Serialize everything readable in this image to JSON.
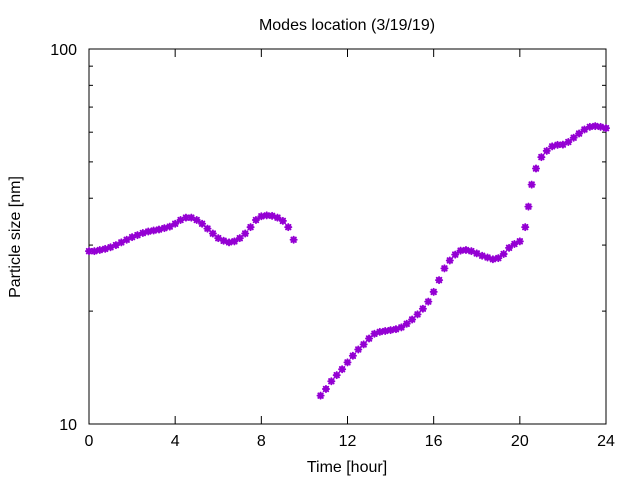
{
  "chart_data": {
    "type": "scatter",
    "title": "Modes location (3/19/19)",
    "xlabel": "Time [hour]",
    "ylabel": "Particle size [nm]",
    "xlim": [
      0,
      24
    ],
    "ylim": [
      10,
      100
    ],
    "yscale": "log",
    "grid": false,
    "legend": "none",
    "xticks": [
      0,
      4,
      8,
      12,
      16,
      20,
      24
    ],
    "xtick_labels": [
      "0",
      "4",
      "8",
      "12",
      "16",
      "20",
      "24"
    ],
    "yticks": [
      10,
      100
    ],
    "ytick_labels": [
      "10",
      "100"
    ],
    "marker_color": "#9400d3",
    "series": [
      {
        "points": [
          [
            0.0,
            28.9
          ],
          [
            0.25,
            28.9
          ],
          [
            0.5,
            29.1
          ],
          [
            0.75,
            29.3
          ],
          [
            1.0,
            29.6
          ],
          [
            1.25,
            30.0
          ],
          [
            1.5,
            30.5
          ],
          [
            1.75,
            31.0
          ],
          [
            2.0,
            31.5
          ],
          [
            2.25,
            31.9
          ],
          [
            2.5,
            32.3
          ],
          [
            2.75,
            32.6
          ],
          [
            3.0,
            32.8
          ],
          [
            3.25,
            33.0
          ],
          [
            3.5,
            33.3
          ],
          [
            3.75,
            33.6
          ],
          [
            4.0,
            34.2
          ],
          [
            4.25,
            35.0
          ],
          [
            4.5,
            35.5
          ],
          [
            4.75,
            35.5
          ],
          [
            5.0,
            35.0
          ],
          [
            5.25,
            34.2
          ],
          [
            5.5,
            33.2
          ],
          [
            5.75,
            32.2
          ],
          [
            6.0,
            31.3
          ],
          [
            6.25,
            30.8
          ],
          [
            6.5,
            30.5
          ],
          [
            6.75,
            30.7
          ],
          [
            7.0,
            31.3
          ],
          [
            7.25,
            32.2
          ],
          [
            7.5,
            33.5
          ],
          [
            7.75,
            35.0
          ],
          [
            8.0,
            35.8
          ],
          [
            8.25,
            36.0
          ],
          [
            8.5,
            35.9
          ],
          [
            8.75,
            35.5
          ],
          [
            9.0,
            34.8
          ],
          [
            9.25,
            33.5
          ],
          [
            9.5,
            31.0
          ]
        ]
      },
      {
        "points": [
          [
            10.75,
            11.9
          ],
          [
            11.0,
            12.4
          ],
          [
            11.25,
            13.0
          ],
          [
            11.5,
            13.5
          ],
          [
            11.75,
            14.0
          ],
          [
            12.0,
            14.6
          ],
          [
            12.25,
            15.2
          ],
          [
            12.5,
            15.8
          ],
          [
            12.75,
            16.3
          ],
          [
            13.0,
            16.9
          ],
          [
            13.25,
            17.4
          ],
          [
            13.5,
            17.6
          ],
          [
            13.75,
            17.7
          ],
          [
            14.0,
            17.8
          ],
          [
            14.25,
            17.9
          ],
          [
            14.5,
            18.1
          ],
          [
            14.75,
            18.5
          ],
          [
            15.0,
            19.0
          ],
          [
            15.25,
            19.6
          ],
          [
            15.5,
            20.3
          ],
          [
            15.75,
            21.2
          ],
          [
            16.0,
            22.5
          ],
          [
            16.25,
            24.2
          ],
          [
            16.5,
            26.0
          ],
          [
            16.75,
            27.3
          ],
          [
            17.0,
            28.3
          ],
          [
            17.25,
            29.0
          ],
          [
            17.5,
            29.1
          ],
          [
            17.75,
            28.9
          ],
          [
            18.0,
            28.5
          ],
          [
            18.25,
            28.1
          ],
          [
            18.5,
            27.8
          ],
          [
            18.75,
            27.5
          ],
          [
            19.0,
            27.7
          ],
          [
            19.25,
            28.4
          ],
          [
            19.5,
            29.5
          ],
          [
            19.75,
            30.2
          ],
          [
            20.0,
            30.7
          ],
          [
            20.25,
            33.5
          ],
          [
            20.4,
            38.0
          ],
          [
            20.55,
            43.5
          ],
          [
            20.75,
            48.0
          ],
          [
            21.0,
            51.5
          ],
          [
            21.25,
            53.5
          ],
          [
            21.5,
            55.0
          ],
          [
            21.75,
            55.5
          ],
          [
            22.0,
            55.6
          ],
          [
            22.25,
            56.5
          ],
          [
            22.5,
            58.0
          ],
          [
            22.75,
            59.5
          ],
          [
            23.0,
            61.0
          ],
          [
            23.25,
            62.0
          ],
          [
            23.5,
            62.3
          ],
          [
            23.75,
            62.0
          ],
          [
            24.0,
            61.5
          ]
        ]
      }
    ]
  }
}
